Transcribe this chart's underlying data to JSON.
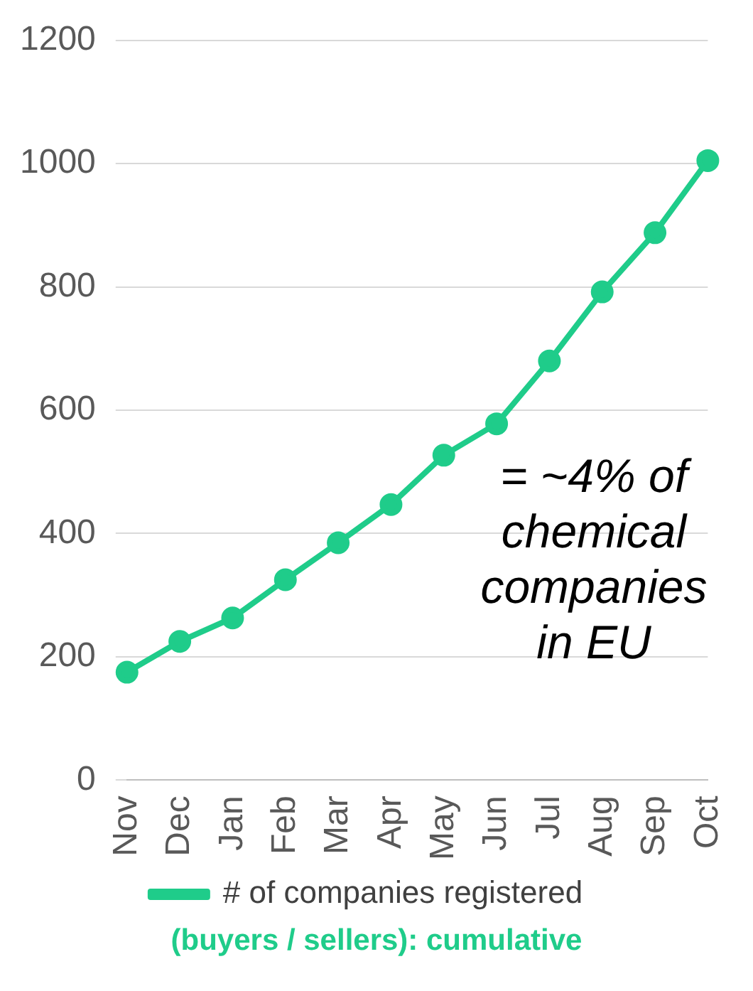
{
  "chart_data": {
    "type": "line",
    "categories": [
      "Nov",
      "Dec",
      "Jan",
      "Feb",
      "Mar",
      "Apr",
      "May",
      "Jun",
      "Jul",
      "Aug",
      "Sep",
      "Oct"
    ],
    "series": [
      {
        "name": "# of companies registered",
        "color": "#1fcc8a",
        "values": [
          175,
          225,
          263,
          325,
          385,
          447,
          527,
          578,
          680,
          792,
          888,
          1005
        ]
      }
    ],
    "ylim": [
      0,
      1200
    ],
    "yticks": [
      0,
      200,
      400,
      600,
      800,
      1000,
      1200
    ],
    "grid": "y",
    "legend": "bottom",
    "marker": "circle",
    "line_style": "solid",
    "annotations": [
      "= ~4% of chemical companies in EU",
      "(buyers / sellers): cumulative"
    ]
  }
}
